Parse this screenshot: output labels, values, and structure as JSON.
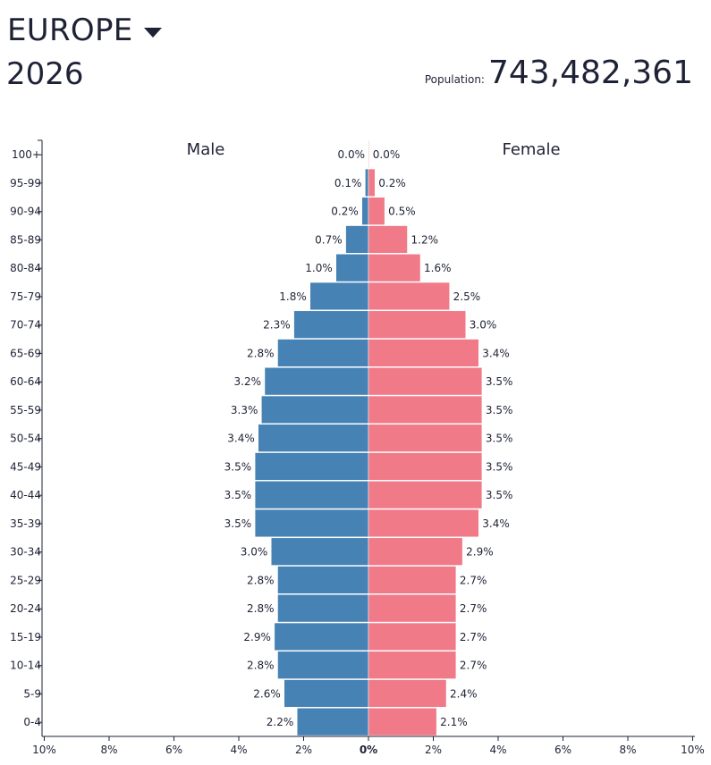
{
  "header": {
    "region": "EUROPE",
    "dropdown_icon": "caret-down-icon",
    "year": "2026",
    "population_label": "Population:",
    "population_value": "743,482,361"
  },
  "colors": {
    "male": "#4682b4",
    "female": "#f07a88",
    "text": "#1e2235"
  },
  "chart_data": {
    "type": "bar",
    "orientation": "horizontal-population-pyramid",
    "categories": [
      "0-4",
      "5-9",
      "10-14",
      "15-19",
      "20-24",
      "25-29",
      "30-34",
      "35-39",
      "40-44",
      "45-49",
      "50-54",
      "55-59",
      "60-64",
      "65-69",
      "70-74",
      "75-79",
      "80-84",
      "85-89",
      "90-94",
      "95-99",
      "100+"
    ],
    "series": [
      {
        "name": "Male",
        "values": [
          2.2,
          2.6,
          2.8,
          2.9,
          2.8,
          2.8,
          3.0,
          3.5,
          3.5,
          3.5,
          3.4,
          3.3,
          3.2,
          2.8,
          2.3,
          1.8,
          1.0,
          0.7,
          0.2,
          0.1,
          0.0
        ],
        "labels": [
          "2.2%",
          "2.6%",
          "2.8%",
          "2.9%",
          "2.8%",
          "2.8%",
          "3.0%",
          "3.5%",
          "3.5%",
          "3.5%",
          "3.4%",
          "3.3%",
          "3.2%",
          "2.8%",
          "2.3%",
          "1.8%",
          "1.0%",
          "0.7%",
          "0.2%",
          "0.1%",
          "0.0%"
        ]
      },
      {
        "name": "Female",
        "values": [
          2.1,
          2.4,
          2.7,
          2.7,
          2.7,
          2.7,
          2.9,
          3.4,
          3.5,
          3.5,
          3.5,
          3.5,
          3.5,
          3.4,
          3.0,
          2.5,
          1.6,
          1.2,
          0.5,
          0.2,
          0.0
        ],
        "labels": [
          "2.1%",
          "2.4%",
          "2.7%",
          "2.7%",
          "2.7%",
          "2.7%",
          "2.9%",
          "3.4%",
          "3.5%",
          "3.5%",
          "3.5%",
          "3.5%",
          "3.5%",
          "3.4%",
          "3.0%",
          "2.5%",
          "1.6%",
          "1.2%",
          "0.5%",
          "0.2%",
          "0.0%"
        ]
      }
    ],
    "x_ticks": [
      "10%",
      "8%",
      "6%",
      "4%",
      "2%",
      "0%",
      "2%",
      "4%",
      "6%",
      "8%",
      "10%"
    ],
    "xlim": [
      -10,
      10
    ],
    "grid": false
  }
}
